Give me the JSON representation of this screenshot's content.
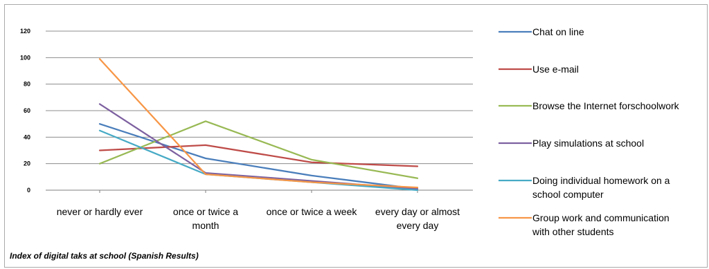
{
  "chart_data": {
    "type": "line",
    "title": "",
    "caption": "Index of digital taks at school (Spanish Results)",
    "categories": [
      [
        "never or hardly ever"
      ],
      [
        "once or twice a",
        "month"
      ],
      [
        "once or twice a week"
      ],
      [
        "every day or almost",
        "every day"
      ]
    ],
    "ylim": [
      0,
      120
    ],
    "yticks": [
      0,
      20,
      40,
      60,
      80,
      100,
      120
    ],
    "grid": true,
    "legend_position": "right",
    "series": [
      {
        "name": [
          "Chat on line"
        ],
        "color": "#4a7ebb",
        "values": [
          50,
          24,
          11,
          1
        ]
      },
      {
        "name": [
          "Use e-mail"
        ],
        "color": "#be4b48",
        "values": [
          30,
          34,
          21,
          18
        ]
      },
      {
        "name": [
          "Browse the Internet forschoolwork"
        ],
        "color": "#98b954",
        "values": [
          20,
          52,
          23,
          9
        ]
      },
      {
        "name": [
          "Play simulations at school"
        ],
        "color": "#7d60a0",
        "values": [
          65,
          13,
          7,
          1
        ]
      },
      {
        "name": [
          "Doing individual homework on a",
          "school computer"
        ],
        "color": "#46aac5",
        "values": [
          45,
          12,
          6,
          0
        ]
      },
      {
        "name": [
          "Group work and communication",
          "with other students"
        ],
        "color": "#f79646",
        "values": [
          99,
          12,
          6,
          2
        ]
      }
    ]
  }
}
